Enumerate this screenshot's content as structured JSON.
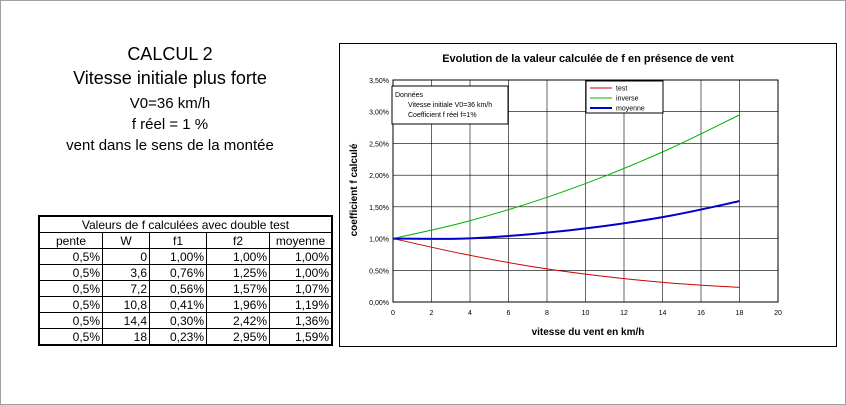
{
  "heading": {
    "title": "CALCUL 2",
    "subtitle": "Vitesse initiale plus forte",
    "v0_text": "V0=36 km/h",
    "freel_text": "f réel = 1 %",
    "vent_text": "vent dans le sens de la montée"
  },
  "table": {
    "caption": "Valeurs de f calculées avec double test",
    "headers": [
      "pente",
      "W",
      "f1",
      "f2",
      "moyenne"
    ],
    "rows": [
      [
        "0,5%",
        "0",
        "1,00%",
        "1,00%",
        "1,00%"
      ],
      [
        "0,5%",
        "3,6",
        "0,76%",
        "1,25%",
        "1,00%"
      ],
      [
        "0,5%",
        "7,2",
        "0,56%",
        "1,57%",
        "1,07%"
      ],
      [
        "0,5%",
        "10,8",
        "0,41%",
        "1,96%",
        "1,19%"
      ],
      [
        "0,5%",
        "14,4",
        "0,30%",
        "2,42%",
        "1,36%"
      ],
      [
        "0,5%",
        "18",
        "0,23%",
        "2,95%",
        "1,59%"
      ]
    ]
  },
  "chart_data": {
    "type": "line",
    "title": "Evolution de la valeur calculée de f en présence de vent",
    "xlabel": "vitesse du vent en km/h",
    "ylabel": "coefficient f calculé",
    "xlim": [
      0,
      20
    ],
    "ylim": [
      0,
      3.5
    ],
    "x_ticks": [
      "0",
      "2",
      "4",
      "6",
      "8",
      "10",
      "12",
      "14",
      "16",
      "18",
      "20"
    ],
    "y_ticks": [
      "0,00%",
      "0,50%",
      "1,00%",
      "1,50%",
      "2,00%",
      "2,50%",
      "3,00%",
      "3,50%"
    ],
    "x": [
      0,
      3.6,
      7.2,
      10.8,
      14.4,
      18
    ],
    "series": [
      {
        "name": "test",
        "color": "#cc0000",
        "values": [
          1.0,
          0.76,
          0.56,
          0.41,
          0.3,
          0.23
        ]
      },
      {
        "name": "inverse",
        "color": "#00b000",
        "values": [
          1.0,
          1.25,
          1.57,
          1.96,
          2.42,
          2.95
        ]
      },
      {
        "name": "moyenne",
        "color": "#0000cc",
        "values": [
          1.0,
          1.0,
          1.07,
          1.19,
          1.36,
          1.59
        ]
      }
    ],
    "annotation": [
      "Données",
      "Vitesse initiale V0=36 km/h",
      "Coefficient f réel f=1%"
    ],
    "grid": true,
    "legend_position": "top-right"
  }
}
